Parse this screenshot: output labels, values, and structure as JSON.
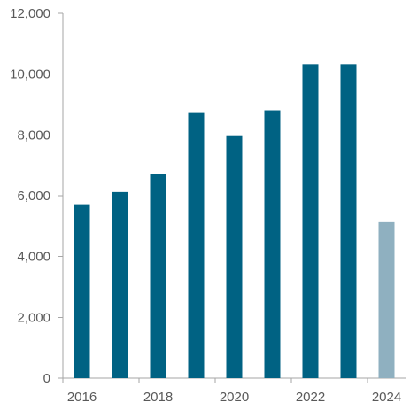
{
  "chart_data": {
    "type": "bar",
    "title": "",
    "xlabel": "",
    "ylabel": "",
    "categories": [
      "2016",
      "2017",
      "2018",
      "2019",
      "2020",
      "2021",
      "2022",
      "2023",
      "2024"
    ],
    "x_tick_labels": [
      "2016",
      "",
      "2018",
      "",
      "2020",
      "",
      "2022",
      "",
      "2024"
    ],
    "values": [
      5720,
      6120,
      6710,
      8720,
      7960,
      8810,
      10330,
      10330,
      5130
    ],
    "ylim": [
      0,
      12000
    ],
    "y_ticks": [
      0,
      2000,
      4000,
      6000,
      8000,
      10000,
      12000
    ],
    "y_tick_labels": [
      "0",
      "2,000",
      "4,000",
      "6,000",
      "8,000",
      "10,000",
      "12,000"
    ],
    "grid": false,
    "legend": "none",
    "colors": {
      "bar": "#006283",
      "bar_highlight": "#8FB0C0",
      "axis": "#A6A6A6",
      "tick_text": "#595959"
    },
    "highlighted_categories": [
      "2024"
    ]
  }
}
